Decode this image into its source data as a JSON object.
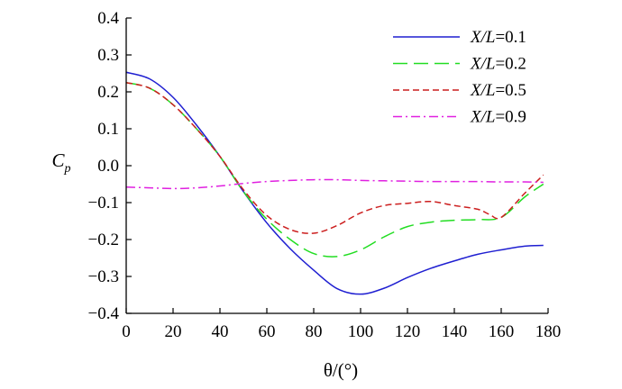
{
  "chart_data": {
    "type": "line",
    "title": "",
    "xlabel": "θ/(°)",
    "ylabel": "C_p",
    "xlim": [
      0,
      180
    ],
    "ylim": [
      -0.4,
      0.4
    ],
    "xticks": [
      0,
      20,
      40,
      60,
      80,
      100,
      120,
      140,
      160,
      180
    ],
    "xtick_labels": [
      "0",
      "20",
      "40",
      "60",
      "80",
      "100",
      "120",
      "140",
      "160",
      "180"
    ],
    "yticks": [
      0.4,
      0.3,
      0.2,
      0.1,
      0.0,
      -0.1,
      -0.2,
      -0.3,
      -0.4
    ],
    "ytick_labels": [
      "0.4",
      "0.3",
      "0.2",
      "0.1",
      "0.0",
      "−0.1",
      "−0.2",
      "−0.3",
      "−0.4"
    ],
    "grid": false,
    "legend_position": "top-right",
    "series": [
      {
        "name": "X/L=0.1",
        "label_italic": "X/L",
        "label_value": "=0.1",
        "color": "#1f1fd1",
        "dash": "solid",
        "x": [
          0,
          10,
          20,
          30,
          40,
          50,
          60,
          70,
          80,
          90,
          100,
          110,
          120,
          130,
          140,
          150,
          160,
          170,
          178
        ],
        "y": [
          0.253,
          0.235,
          0.185,
          0.11,
          0.025,
          -0.07,
          -0.155,
          -0.225,
          -0.283,
          -0.333,
          -0.348,
          -0.332,
          -0.303,
          -0.278,
          -0.258,
          -0.24,
          -0.228,
          -0.218,
          -0.216
        ]
      },
      {
        "name": "X/L=0.2",
        "label_italic": "X/L",
        "label_value": "=0.2",
        "color": "#22dd22",
        "dash": "long-dash",
        "x": [
          0,
          10,
          20,
          30,
          40,
          50,
          60,
          70,
          80,
          90,
          100,
          110,
          120,
          130,
          140,
          150,
          160,
          170,
          178
        ],
        "y": [
          0.225,
          0.21,
          0.165,
          0.1,
          0.025,
          -0.07,
          -0.145,
          -0.2,
          -0.238,
          -0.246,
          -0.228,
          -0.193,
          -0.165,
          -0.153,
          -0.148,
          -0.146,
          -0.14,
          -0.085,
          -0.05
        ]
      },
      {
        "name": "X/L=0.5",
        "label_italic": "X/L",
        "label_value": "=0.5",
        "color": "#cc1f1f",
        "dash": "short-dash",
        "x": [
          0,
          10,
          20,
          30,
          40,
          50,
          60,
          70,
          80,
          90,
          100,
          110,
          120,
          130,
          140,
          150,
          155,
          160,
          170,
          178
        ],
        "y": [
          0.225,
          0.21,
          0.165,
          0.1,
          0.025,
          -0.065,
          -0.135,
          -0.173,
          -0.183,
          -0.162,
          -0.128,
          -0.108,
          -0.102,
          -0.097,
          -0.108,
          -0.118,
          -0.132,
          -0.14,
          -0.075,
          -0.025
        ]
      },
      {
        "name": "X/L=0.9",
        "label_italic": "X/L",
        "label_value": "=0.9",
        "color": "#e020e0",
        "dash": "dash-dot",
        "x": [
          0,
          10,
          20,
          30,
          40,
          50,
          60,
          70,
          80,
          90,
          100,
          110,
          120,
          130,
          140,
          150,
          160,
          170,
          178
        ],
        "y": [
          -0.058,
          -0.06,
          -0.062,
          -0.06,
          -0.055,
          -0.048,
          -0.043,
          -0.04,
          -0.038,
          -0.038,
          -0.04,
          -0.041,
          -0.042,
          -0.043,
          -0.043,
          -0.043,
          -0.044,
          -0.044,
          -0.045
        ]
      }
    ]
  }
}
